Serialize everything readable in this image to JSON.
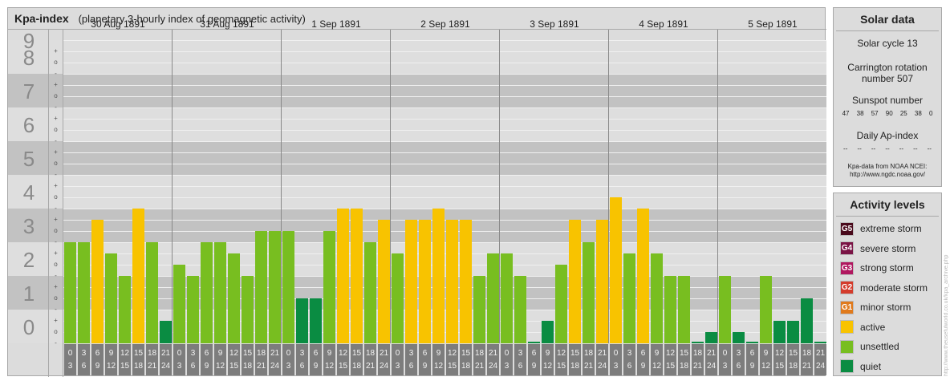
{
  "main": {
    "title": "Kpa-index",
    "subtitle": "(planetary 3-hourly index of geomagnetic activity)"
  },
  "chart_data": {
    "type": "bar",
    "title": "Kpa-index",
    "subtitle": "(planetary 3-hourly index of geomagnetic activity)",
    "xlabel": "",
    "ylabel": "",
    "ylim": [
      0,
      9
    ],
    "y_ticks": [
      "0",
      "1",
      "2",
      "3",
      "4",
      "5",
      "6",
      "7",
      "8",
      "9"
    ],
    "y_minor_ticks": [
      "-",
      "o",
      "+"
    ],
    "grid": true,
    "hour_start_labels": [
      "0",
      "3",
      "6",
      "9",
      "12",
      "15",
      "18",
      "21"
    ],
    "hour_end_labels": [
      "3",
      "6",
      "9",
      "12",
      "15",
      "18",
      "21",
      "24"
    ],
    "days": [
      {
        "label": "30 Aug 1891",
        "values": [
          3,
          3,
          3.667,
          2.667,
          2,
          4,
          3,
          0.667
        ]
      },
      {
        "label": "31 Aug 1891",
        "values": [
          2.333,
          2,
          3,
          3,
          2.667,
          2,
          3.333,
          3.333
        ]
      },
      {
        "label": "1 Sep 1891",
        "values": [
          3.333,
          1.333,
          1.333,
          3.333,
          4,
          4,
          3,
          3.667
        ]
      },
      {
        "label": "2 Sep 1891",
        "values": [
          2.667,
          3.667,
          3.667,
          4,
          3.667,
          3.667,
          2,
          2.667
        ]
      },
      {
        "label": "3 Sep 1891",
        "values": [
          2.667,
          2,
          0,
          0.667,
          2.333,
          3.667,
          3,
          3.667
        ]
      },
      {
        "label": "4 Sep 1891",
        "values": [
          4.333,
          2.667,
          4,
          2.667,
          2,
          2,
          0,
          0.333
        ]
      },
      {
        "label": "5 Sep 1891",
        "values": [
          2,
          0.333,
          0,
          2,
          0.667,
          0.667,
          1.333,
          0
        ]
      }
    ]
  },
  "solar": {
    "title": "Solar data",
    "cycle": "Solar cycle 13",
    "carrington_1": "Carrington rotation",
    "carrington_2": "number 507",
    "sunspot_title": "Sunspot number",
    "sunspots": [
      "47",
      "38",
      "57",
      "90",
      "25",
      "38",
      "0"
    ],
    "ap_title": "Daily Ap-index",
    "ap": [
      "--",
      "--",
      "--",
      "--",
      "--",
      "--",
      "--"
    ],
    "source_1": "Kpa-data from NOAA NCEI:",
    "source_2": "http://www.ngdc.noaa.gov/"
  },
  "activity": {
    "title": "Activity levels",
    "levels": [
      {
        "badge": "G5",
        "label": "extreme storm",
        "color": "#4a0a1c"
      },
      {
        "badge": "G4",
        "label": "severe storm",
        "color": "#7a1345"
      },
      {
        "badge": "G3",
        "label": "strong storm",
        "color": "#b0175f"
      },
      {
        "badge": "G2",
        "label": "moderate storm",
        "color": "#d43c2c"
      },
      {
        "badge": "G1",
        "label": "minor storm",
        "color": "#e07a1c"
      },
      {
        "badge": "",
        "label": "active",
        "color": "#f8c300"
      },
      {
        "badge": "",
        "label": "unsettled",
        "color": "#78be20"
      },
      {
        "badge": "",
        "label": "quiet",
        "color": "#0a8c42"
      }
    ]
  },
  "watermark": "http://www.theusefulworld.co.uk/kpa_archive.php",
  "colors": {
    "quiet": "#0a8c42",
    "unsettled": "#78be20",
    "active": "#f8c300",
    "band_dark": "#c2c2c2",
    "band_light": "#dedede",
    "hour_box": "#7d7d7d"
  }
}
